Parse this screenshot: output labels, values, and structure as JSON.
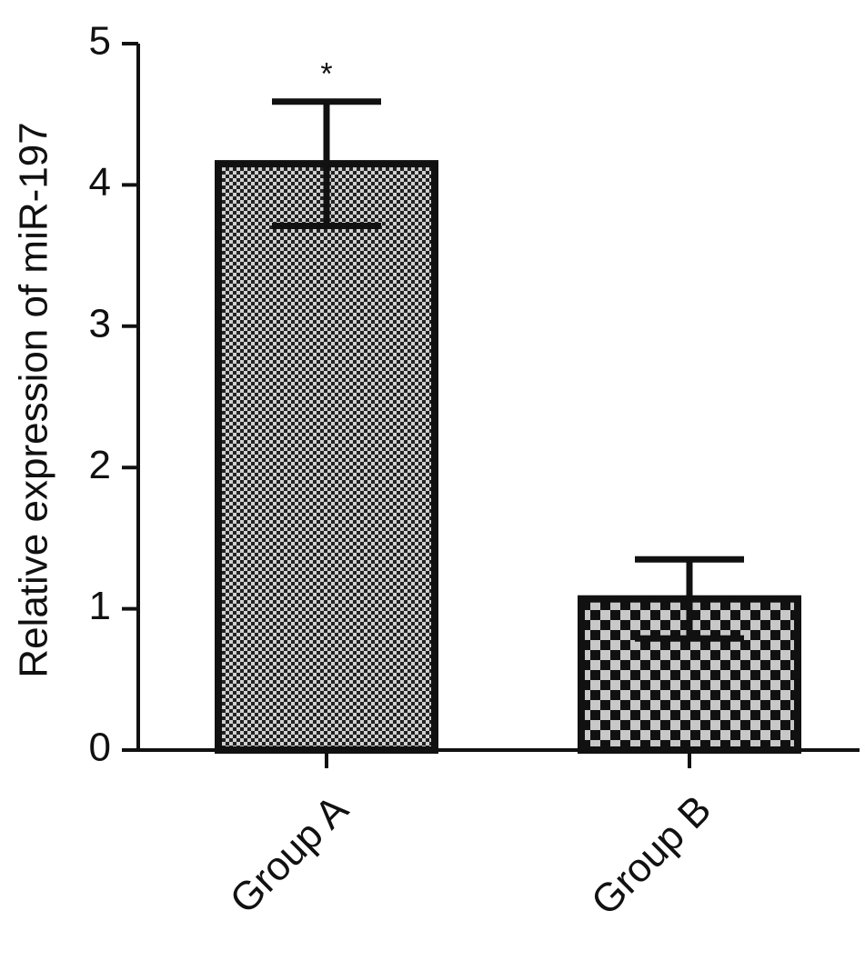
{
  "chart_data": {
    "type": "bar",
    "y_label": "Relative expression of miR-197",
    "categories": [
      "Group A",
      "Group B"
    ],
    "values": [
      4.15,
      1.07
    ],
    "errors": [
      0.44,
      0.28
    ],
    "annotations": [
      {
        "text": "*",
        "category": "Group A"
      }
    ],
    "ylim": [
      0,
      5
    ],
    "yticks": [
      0,
      1,
      2,
      3,
      4,
      5
    ]
  }
}
